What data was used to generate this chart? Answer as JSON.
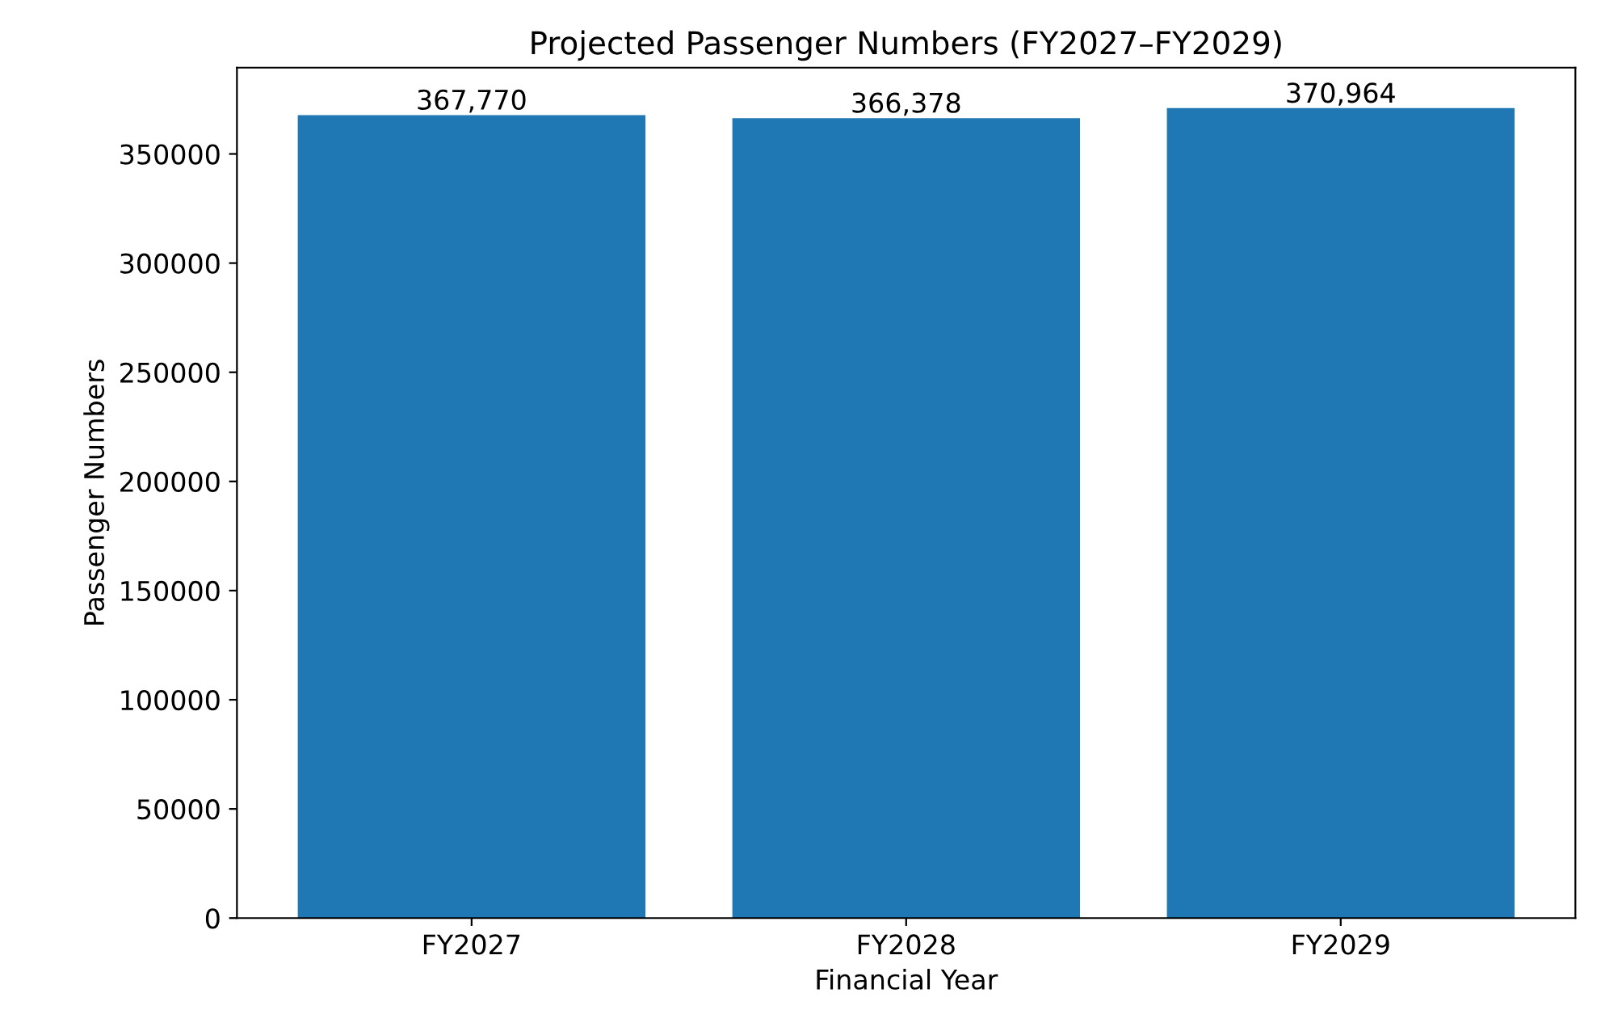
{
  "chart_data": {
    "type": "bar",
    "title": "Projected Passenger Numbers (FY2027–FY2029)",
    "xlabel": "Financial Year",
    "ylabel": "Passenger Numbers",
    "categories": [
      "FY2027",
      "FY2028",
      "FY2029"
    ],
    "values": [
      367770,
      366378,
      370964
    ],
    "value_labels": [
      "367,770",
      "366,378",
      "370,964"
    ],
    "color": "#1f77b4",
    "ylim": [
      0,
      389512
    ],
    "yticks": [
      0,
      50000,
      100000,
      150000,
      200000,
      250000,
      300000,
      350000
    ],
    "grid": false
  }
}
